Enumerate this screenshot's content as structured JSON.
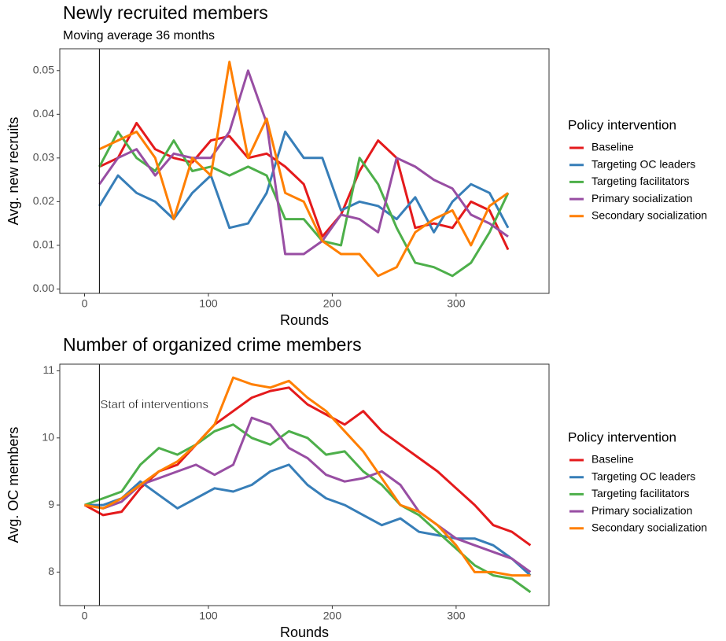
{
  "chart_data": [
    {
      "type": "line",
      "title": "Newly recruited members",
      "subtitle": "Moving average 36 months",
      "x_label": "Rounds",
      "y_label": "Avg. new recruits",
      "legend_title": "Policy intervention",
      "xlim": [
        -20,
        375
      ],
      "xticks": [
        0,
        100,
        200,
        300
      ],
      "ylim": [
        -0.001,
        0.055
      ],
      "yticks": [
        {
          "value": 0,
          "label": "0.00"
        },
        0.01,
        0.02,
        0.03,
        0.04,
        0.05
      ],
      "vline": 12,
      "grid": false,
      "x": [
        12,
        27,
        42,
        57,
        72,
        87,
        102,
        117,
        132,
        147,
        162,
        177,
        192,
        207,
        222,
        237,
        252,
        267,
        282,
        297,
        312,
        327,
        342
      ],
      "series": [
        {
          "name": "Baseline",
          "color": "#e41a1c",
          "values": [
            0.028,
            0.03,
            0.038,
            0.032,
            0.03,
            0.029,
            0.034,
            0.035,
            0.03,
            0.031,
            0.028,
            0.024,
            0.012,
            0.017,
            0.027,
            0.034,
            0.03,
            0.014,
            0.015,
            0.014,
            0.02,
            0.018,
            0.009
          ]
        },
        {
          "name": "Targeting OC leaders",
          "color": "#377eb8",
          "values": [
            0.019,
            0.026,
            0.022,
            0.02,
            0.016,
            0.022,
            0.026,
            0.014,
            0.015,
            0.022,
            0.036,
            0.03,
            0.03,
            0.018,
            0.02,
            0.019,
            0.016,
            0.021,
            0.013,
            0.02,
            0.024,
            0.022,
            0.014
          ]
        },
        {
          "name": "Targeting facilitators",
          "color": "#4daf4a",
          "values": [
            0.028,
            0.036,
            0.03,
            0.027,
            0.034,
            0.027,
            0.028,
            0.026,
            0.028,
            0.026,
            0.016,
            0.016,
            0.011,
            0.01,
            0.03,
            0.024,
            0.014,
            0.006,
            0.005,
            0.003,
            0.006,
            0.013,
            0.022
          ]
        },
        {
          "name": "Primary socialization",
          "color": "#984ea3",
          "values": [
            0.024,
            0.03,
            0.032,
            0.026,
            0.031,
            0.03,
            0.03,
            0.036,
            0.05,
            0.038,
            0.008,
            0.008,
            0.011,
            0.017,
            0.016,
            0.013,
            0.03,
            0.028,
            0.025,
            0.023,
            0.017,
            0.015,
            0.012
          ]
        },
        {
          "name": "Secondary socialization",
          "color": "#ff7f00",
          "values": [
            0.032,
            0.034,
            0.036,
            0.03,
            0.016,
            0.03,
            0.026,
            0.052,
            0.03,
            0.039,
            0.022,
            0.02,
            0.011,
            0.008,
            0.008,
            0.003,
            0.005,
            0.013,
            0.016,
            0.018,
            0.01,
            0.019,
            0.022
          ]
        }
      ]
    },
    {
      "type": "line",
      "title": "Number of organized crime members",
      "x_label": "Rounds",
      "y_label": "Avg. OC members",
      "legend_title": "Policy intervention",
      "annotation": "Start of interventions",
      "xlim": [
        -20,
        375
      ],
      "xticks": [
        0,
        100,
        200,
        300
      ],
      "ylim": [
        7.5,
        11.1
      ],
      "yticks": [
        8,
        9,
        10,
        11
      ],
      "vline": 12,
      "grid": false,
      "x": [
        0,
        15,
        30,
        45,
        60,
        75,
        90,
        105,
        120,
        135,
        150,
        165,
        180,
        195,
        210,
        225,
        240,
        255,
        270,
        285,
        300,
        315,
        330,
        345,
        360
      ],
      "series": [
        {
          "name": "Baseline",
          "color": "#e41a1c",
          "values": [
            9.0,
            8.85,
            8.9,
            9.25,
            9.5,
            9.6,
            9.9,
            10.2,
            10.4,
            10.6,
            10.7,
            10.75,
            10.5,
            10.35,
            10.2,
            10.4,
            10.1,
            9.9,
            9.7,
            9.5,
            9.25,
            9.0,
            8.7,
            8.6,
            8.4
          ]
        },
        {
          "name": "Targeting OC leaders",
          "color": "#377eb8",
          "values": [
            9.0,
            9.0,
            9.1,
            9.35,
            9.15,
            8.95,
            9.1,
            9.25,
            9.2,
            9.3,
            9.5,
            9.6,
            9.3,
            9.1,
            9.0,
            8.85,
            8.7,
            8.8,
            8.6,
            8.55,
            8.5,
            8.5,
            8.4,
            8.2,
            7.95
          ]
        },
        {
          "name": "Targeting facilitators",
          "color": "#4daf4a",
          "values": [
            9.0,
            9.1,
            9.2,
            9.6,
            9.85,
            9.75,
            9.9,
            10.1,
            10.2,
            10.0,
            9.9,
            10.1,
            10.0,
            9.75,
            9.8,
            9.5,
            9.3,
            9.0,
            8.85,
            8.6,
            8.35,
            8.1,
            7.95,
            7.9,
            7.7
          ]
        },
        {
          "name": "Primary socialization",
          "color": "#984ea3",
          "values": [
            9.0,
            8.95,
            9.05,
            9.3,
            9.4,
            9.5,
            9.6,
            9.45,
            9.6,
            10.3,
            10.2,
            9.85,
            9.7,
            9.45,
            9.35,
            9.4,
            9.5,
            9.3,
            8.9,
            8.7,
            8.5,
            8.4,
            8.3,
            8.2,
            8.0
          ]
        },
        {
          "name": "Secondary socialization",
          "color": "#ff7f00",
          "values": [
            9.0,
            8.95,
            9.1,
            9.3,
            9.5,
            9.65,
            9.9,
            10.2,
            10.9,
            10.8,
            10.75,
            10.85,
            10.6,
            10.4,
            10.1,
            9.8,
            9.4,
            9.0,
            8.9,
            8.7,
            8.4,
            8.0,
            8.0,
            7.95,
            7.95
          ]
        }
      ]
    }
  ]
}
